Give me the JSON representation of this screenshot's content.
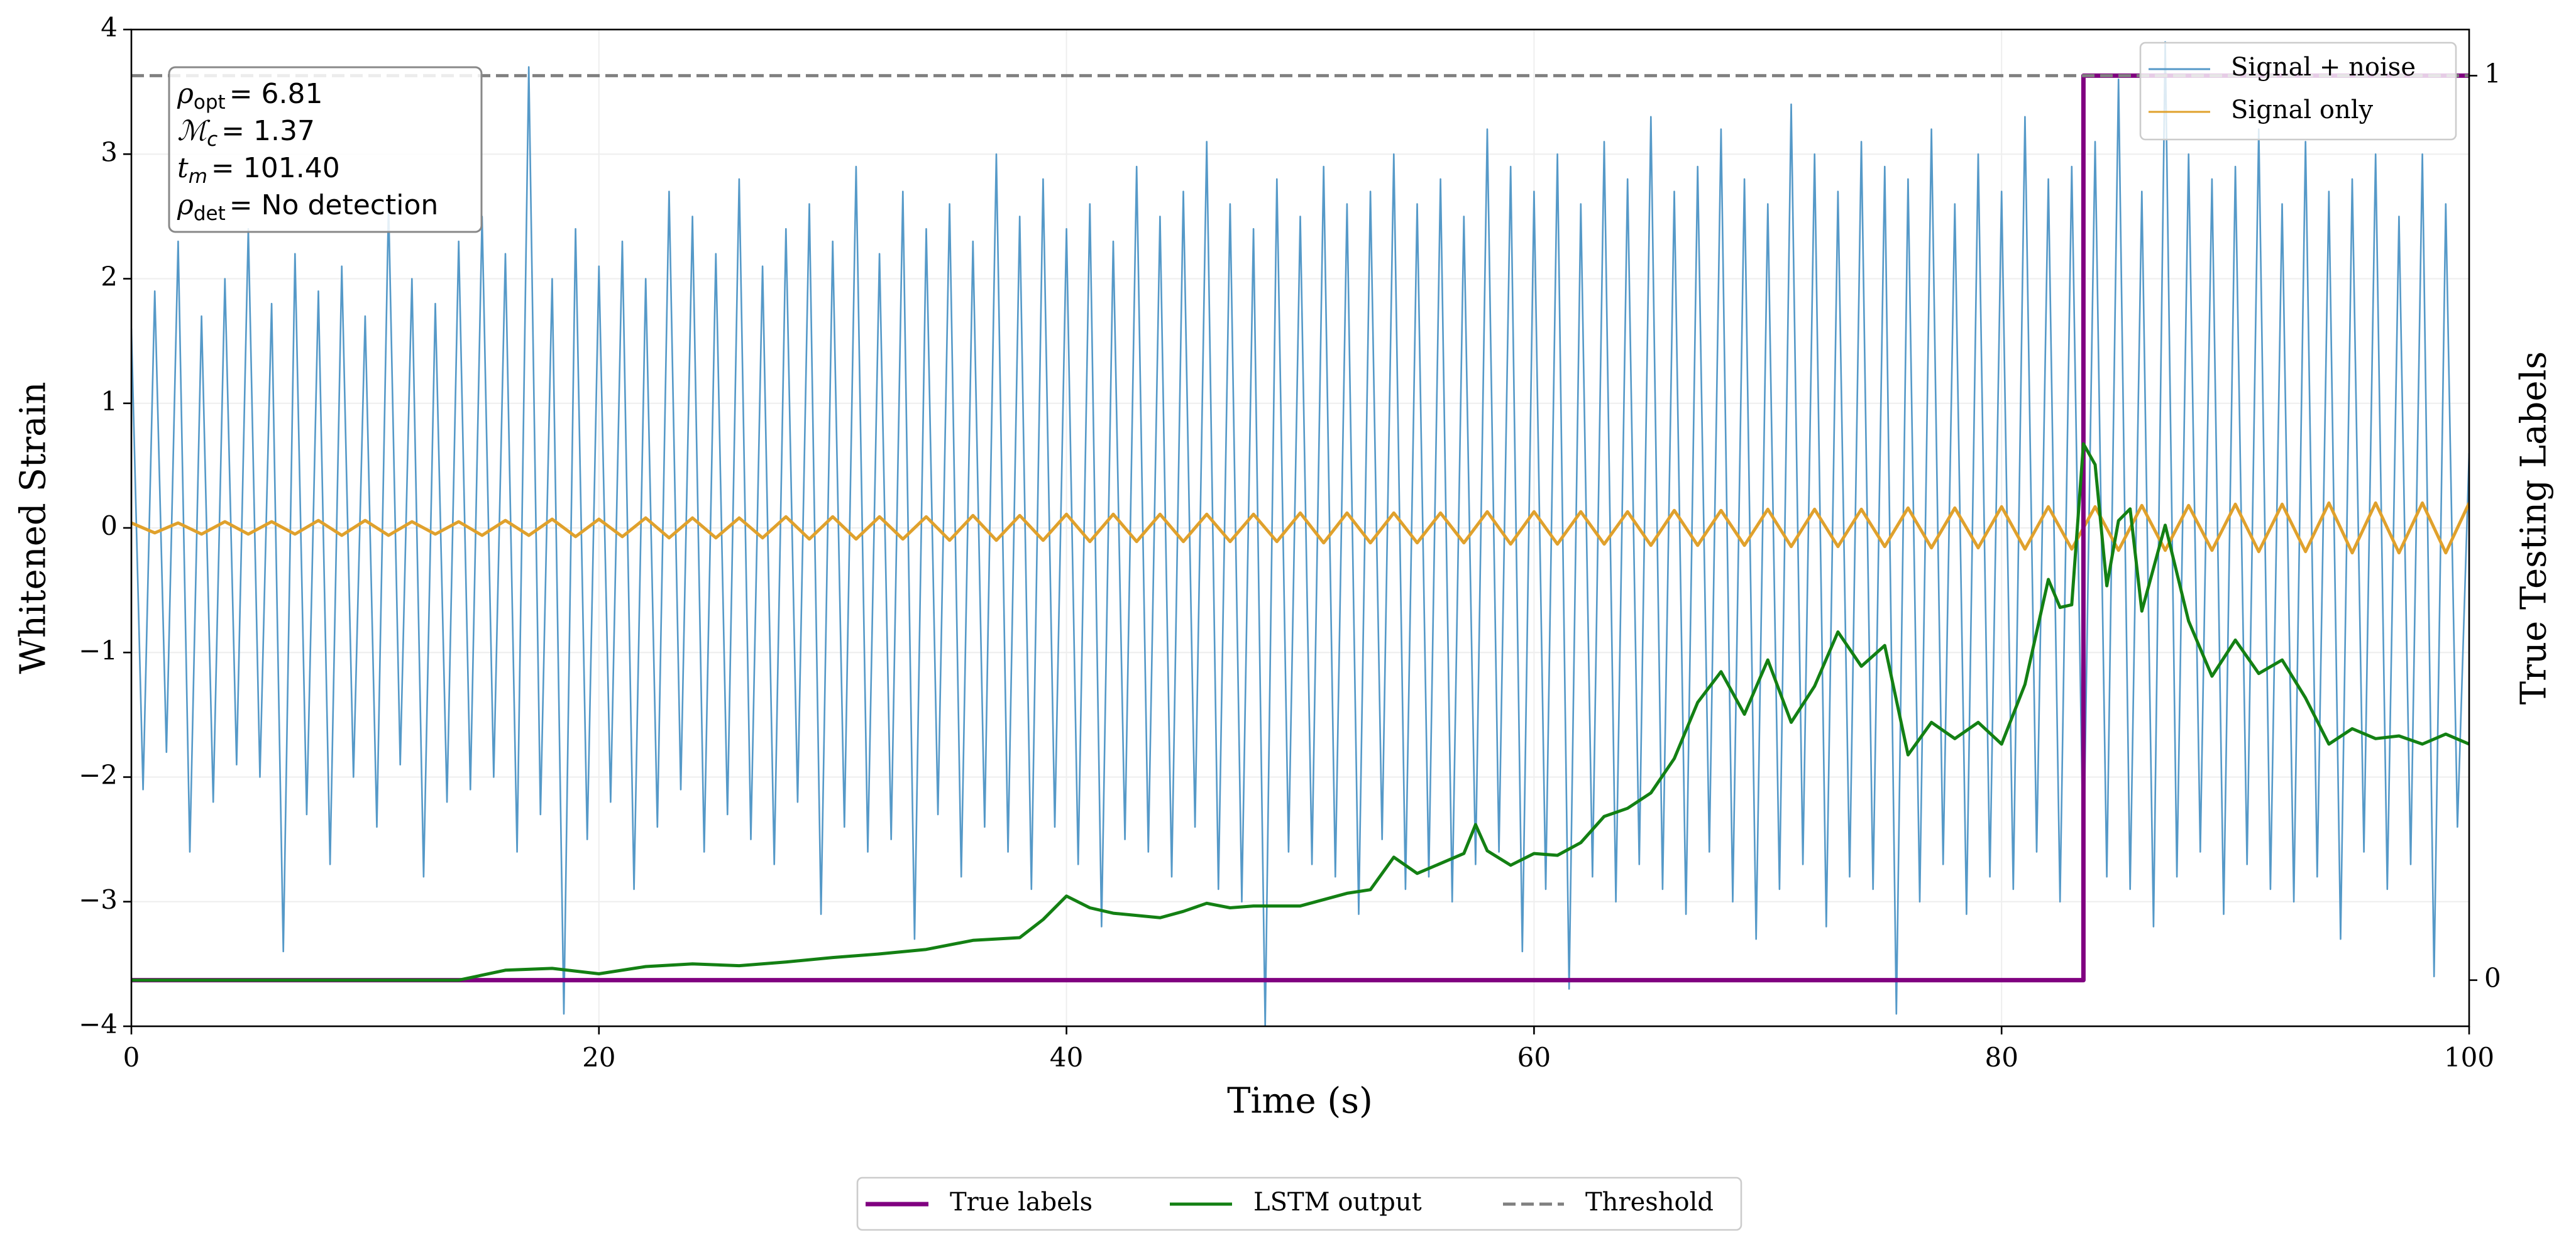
{
  "chart_data": {
    "type": "line",
    "xlabel": "Time (s)",
    "ylabel": "Whitened Strain",
    "y2label": "True Testing Labels",
    "xlim": [
      0,
      100
    ],
    "xticks": [
      0,
      20,
      40,
      60,
      80,
      100
    ],
    "ylim": [
      -4,
      4
    ],
    "yticks": [
      {
        "value": -4,
        "label": "−4"
      },
      {
        "value": -3,
        "label": "−3"
      },
      {
        "value": -2,
        "label": "−2"
      },
      {
        "value": -1,
        "label": "−1"
      },
      0,
      1,
      2,
      3,
      4
    ],
    "y2lim": [
      -0.051,
      1.051
    ],
    "y2ticks": [
      0,
      1
    ],
    "grid": true,
    "annotation": [
      {
        "symbol": "ρ",
        "sub": "opt",
        "text": "= 6.81"
      },
      {
        "symbol": "ℳ",
        "sub": "c",
        "text": "= 1.37"
      },
      {
        "symbol": "t",
        "sub": "m",
        "text": "= 101.40"
      },
      {
        "symbol": "ρ",
        "sub": "det",
        "text": "= No detection"
      }
    ],
    "series": [
      {
        "name": "Signal + noise",
        "color": "#5599c8",
        "legend": "upper right",
        "x": [
          0,
          0.5,
          1,
          1.5,
          2,
          2.5,
          3,
          3.5,
          4,
          4.5,
          5,
          5.5,
          6,
          6.5,
          7,
          7.5,
          8,
          8.5,
          9,
          9.5,
          10,
          10.5,
          11,
          11.5,
          12,
          12.5,
          13,
          13.5,
          14,
          14.5,
          15,
          15.5,
          16,
          16.5,
          17,
          17.5,
          18,
          18.5,
          19,
          19.5,
          20,
          20.5,
          21,
          21.5,
          22,
          22.5,
          23,
          23.5,
          24,
          24.5,
          25,
          25.5,
          26,
          26.5,
          27,
          27.5,
          28,
          28.5,
          29,
          29.5,
          30,
          30.5,
          31,
          31.5,
          32,
          32.5,
          33,
          33.5,
          34,
          34.5,
          35,
          35.5,
          36,
          36.5,
          37,
          37.5,
          38,
          38.5,
          39,
          39.5,
          40,
          40.5,
          41,
          41.5,
          42,
          42.5,
          43,
          43.5,
          44,
          44.5,
          45,
          45.5,
          46,
          46.5,
          47,
          47.5,
          48,
          48.5,
          49,
          49.5,
          50,
          50.5,
          51,
          51.5,
          52,
          52.5,
          53,
          53.5,
          54,
          54.5,
          55,
          55.5,
          56,
          56.5,
          57,
          57.5,
          58,
          58.5,
          59,
          59.5,
          60,
          60.5,
          61,
          61.5,
          62,
          62.5,
          63,
          63.5,
          64,
          64.5,
          65,
          65.5,
          66,
          66.5,
          67,
          67.5,
          68,
          68.5,
          69,
          69.5,
          70,
          70.5,
          71,
          71.5,
          72,
          72.5,
          73,
          73.5,
          74,
          74.5,
          75,
          75.5,
          76,
          76.5,
          77,
          77.5,
          78,
          78.5,
          79,
          79.5,
          80,
          80.5,
          81,
          81.5,
          82,
          82.5,
          83,
          83.5,
          84,
          84.5,
          85,
          85.5,
          86,
          86.5,
          87,
          87.5,
          88,
          88.5,
          89,
          89.5,
          90,
          90.5,
          91,
          91.5,
          92,
          92.5,
          93,
          93.5,
          94,
          94.5,
          95,
          95.5,
          96,
          96.5,
          97,
          97.5,
          98,
          98.5,
          99,
          99.5,
          100
        ],
        "values": [
          1.6,
          -2.1,
          1.9,
          -1.8,
          2.3,
          -2.6,
          1.7,
          -2.2,
          2.0,
          -1.9,
          2.4,
          -2.0,
          1.8,
          -3.4,
          2.2,
          -2.3,
          1.9,
          -2.7,
          2.1,
          -2.0,
          1.7,
          -2.4,
          2.6,
          -1.9,
          2.0,
          -2.8,
          1.8,
          -2.2,
          2.3,
          -2.1,
          2.5,
          -2.0,
          2.2,
          -2.6,
          3.7,
          -2.3,
          2.0,
          -3.9,
          2.4,
          -2.5,
          2.1,
          -2.2,
          2.3,
          -2.9,
          2.0,
          -2.4,
          2.7,
          -2.1,
          2.5,
          -2.6,
          2.2,
          -2.3,
          2.8,
          -2.5,
          2.1,
          -2.7,
          2.4,
          -2.2,
          2.6,
          -3.1,
          2.3,
          -2.4,
          2.9,
          -2.6,
          2.2,
          -2.5,
          2.7,
          -3.3,
          2.4,
          -2.3,
          2.6,
          -2.8,
          2.3,
          -2.4,
          3.0,
          -2.6,
          2.5,
          -2.9,
          2.8,
          -2.4,
          2.4,
          -2.7,
          2.6,
          -3.2,
          2.3,
          -2.5,
          2.9,
          -2.6,
          2.5,
          -2.8,
          2.7,
          -2.4,
          3.1,
          -2.9,
          2.6,
          -3.0,
          2.4,
          -4.0,
          2.8,
          -2.6,
          2.5,
          -2.7,
          2.9,
          -2.8,
          2.6,
          -3.1,
          2.7,
          -2.5,
          3.0,
          -2.9,
          2.6,
          -2.8,
          2.8,
          -3.0,
          2.5,
          -2.7,
          3.2,
          -2.6,
          2.9,
          -3.4,
          2.7,
          -2.9,
          3.0,
          -3.7,
          2.6,
          -2.8,
          3.1,
          -3.0,
          2.8,
          -2.7,
          3.3,
          -2.9,
          2.7,
          -3.1,
          2.9,
          -2.6,
          3.2,
          -3.0,
          2.8,
          -3.3,
          2.6,
          -2.9,
          3.4,
          -2.7,
          3.0,
          -3.2,
          2.7,
          -2.8,
          3.1,
          -2.9,
          2.9,
          -3.9,
          2.8,
          -3.0,
          3.2,
          -2.7,
          2.6,
          -3.1,
          3.0,
          -2.8,
          2.7,
          -2.9,
          3.3,
          -2.6,
          2.8,
          -3.0,
          2.9,
          -2.7,
          3.1,
          -2.8,
          3.6,
          -2.9,
          2.7,
          -3.2,
          3.9,
          -2.8,
          3.0,
          -2.6,
          2.8,
          -3.1,
          2.9,
          -2.7,
          3.2,
          -2.9,
          2.6,
          -3.0,
          3.1,
          -2.8,
          2.7,
          -3.3,
          2.8,
          -2.6,
          3.0,
          -2.9,
          2.5,
          -2.7,
          3.0,
          -3.6,
          2.6,
          -2.4,
          0.6
        ]
      },
      {
        "name": "Signal only",
        "color": "#e0a12c",
        "legend": "upper right",
        "x": [
          0,
          1,
          2,
          3,
          4,
          5,
          6,
          7,
          8,
          9,
          10,
          11,
          12,
          13,
          14,
          15,
          16,
          17,
          18,
          19,
          20,
          21,
          22,
          23,
          24,
          25,
          26,
          27,
          28,
          29,
          30,
          31,
          32,
          33,
          34,
          35,
          36,
          37,
          38,
          39,
          40,
          41,
          42,
          43,
          44,
          45,
          46,
          47,
          48,
          49,
          50,
          51,
          52,
          53,
          54,
          55,
          56,
          57,
          58,
          59,
          60,
          61,
          62,
          63,
          64,
          65,
          66,
          67,
          68,
          69,
          70,
          71,
          72,
          73,
          74,
          75,
          76,
          77,
          78,
          79,
          80,
          81,
          82,
          83,
          84,
          85,
          86,
          87,
          88,
          89,
          90,
          91,
          92,
          93,
          94,
          95,
          96,
          97,
          98,
          99,
          100
        ],
        "values": [
          0.04,
          -0.04,
          0.04,
          -0.05,
          0.05,
          -0.05,
          0.05,
          -0.05,
          0.06,
          -0.06,
          0.06,
          -0.06,
          0.05,
          -0.05,
          0.05,
          -0.06,
          0.06,
          -0.06,
          0.07,
          -0.07,
          0.07,
          -0.07,
          0.08,
          -0.08,
          0.08,
          -0.08,
          0.08,
          -0.08,
          0.09,
          -0.09,
          0.09,
          -0.09,
          0.09,
          -0.09,
          0.09,
          -0.1,
          0.1,
          -0.1,
          0.1,
          -0.1,
          0.11,
          -0.11,
          0.11,
          -0.11,
          0.11,
          -0.11,
          0.11,
          -0.11,
          0.11,
          -0.11,
          0.12,
          -0.12,
          0.12,
          -0.12,
          0.12,
          -0.12,
          0.12,
          -0.12,
          0.13,
          -0.13,
          0.13,
          -0.13,
          0.13,
          -0.13,
          0.13,
          -0.14,
          0.14,
          -0.14,
          0.14,
          -0.14,
          0.15,
          -0.15,
          0.15,
          -0.15,
          0.15,
          -0.15,
          0.16,
          -0.16,
          0.16,
          -0.16,
          0.17,
          -0.17,
          0.17,
          -0.17,
          0.17,
          -0.18,
          0.18,
          -0.18,
          0.18,
          -0.18,
          0.19,
          -0.19,
          0.19,
          -0.19,
          0.2,
          -0.2,
          0.2,
          -0.2,
          0.2,
          -0.2,
          0.2
        ]
      },
      {
        "name": "True labels",
        "color": "#800080",
        "legend": "lower center",
        "axis": "y2",
        "x": [
          0,
          83.5,
          83.5,
          100
        ],
        "values": [
          0,
          0,
          1,
          1
        ]
      },
      {
        "name": "LSTM output",
        "color": "#138013",
        "legend": "lower center",
        "axis": "y2",
        "x": [
          0,
          2,
          4,
          6,
          8,
          10,
          12,
          14,
          16,
          18,
          20,
          22,
          24,
          26,
          28,
          30,
          32,
          34,
          36,
          38,
          39,
          40,
          41,
          42,
          44,
          45,
          46,
          47,
          48,
          50,
          52,
          53,
          54,
          55,
          57,
          57.5,
          58,
          59,
          60,
          61,
          62,
          63,
          64,
          65,
          66,
          67,
          68,
          69,
          70,
          71,
          72,
          73,
          74,
          75,
          76,
          77,
          78,
          79,
          80,
          81,
          82,
          82.5,
          83,
          83.5,
          84,
          84.5,
          85,
          85.5,
          86,
          87,
          88,
          89,
          90,
          91,
          92,
          93,
          94,
          95,
          96,
          97,
          98,
          99,
          100
        ],
        "values": [
          0,
          0,
          0,
          0,
          0,
          0,
          0,
          0,
          0.011,
          0.013,
          0.007,
          0.015,
          0.018,
          0.016,
          0.02,
          0.025,
          0.029,
          0.034,
          0.044,
          0.047,
          0.067,
          0.093,
          0.08,
          0.074,
          0.069,
          0.076,
          0.085,
          0.08,
          0.082,
          0.082,
          0.096,
          0.1,
          0.136,
          0.118,
          0.14,
          0.172,
          0.143,
          0.127,
          0.14,
          0.138,
          0.152,
          0.181,
          0.19,
          0.207,
          0.245,
          0.307,
          0.341,
          0.294,
          0.354,
          0.285,
          0.325,
          0.385,
          0.347,
          0.37,
          0.249,
          0.285,
          0.267,
          0.285,
          0.261,
          0.327,
          0.443,
          0.412,
          0.415,
          0.593,
          0.57,
          0.436,
          0.508,
          0.521,
          0.408,
          0.503,
          0.397,
          0.336,
          0.376,
          0.339,
          0.354,
          0.312,
          0.261,
          0.278,
          0.267,
          0.27,
          0.261,
          0.272,
          0.261
        ]
      },
      {
        "name": "Threshold",
        "color": "#808080",
        "legend": "lower center",
        "axis": "y2",
        "dashed": true,
        "x": [
          0,
          100
        ],
        "values": [
          1,
          1
        ]
      }
    ]
  }
}
